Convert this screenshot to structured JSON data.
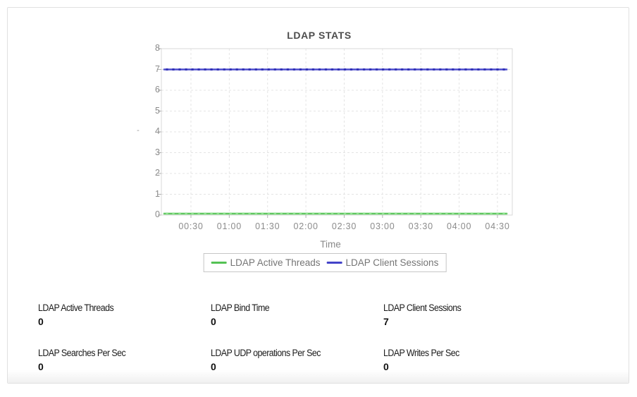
{
  "chart_data": {
    "type": "line",
    "title": "LDAP STATS",
    "xlabel": "Time",
    "ylabel": "-",
    "ylim": [
      0,
      8
    ],
    "yticks": [
      0,
      1,
      2,
      3,
      4,
      5,
      6,
      7,
      8
    ],
    "xticks": [
      "00:30",
      "01:00",
      "01:30",
      "02:00",
      "02:30",
      "03:00",
      "03:30",
      "04:00",
      "04:30"
    ],
    "grid": true,
    "legend_position": "bottom",
    "series": [
      {
        "name": "LDAP Active Threads",
        "constant_value": 0,
        "num_points": 54,
        "color": "#54c254",
        "marker_color": "#8de28d"
      },
      {
        "name": "LDAP Client Sessions",
        "constant_value": 7,
        "num_points": 54,
        "color": "#4343c9",
        "marker_color": "#2c2cb4"
      }
    ],
    "axis_tick_color": "#b0b0b0",
    "grid_color": "#e4e4e4",
    "plot_border_color": "#d9d9d9",
    "layout": {
      "tick_start_frac": 0.0843,
      "tick_step_frac": 0.10918
    }
  },
  "stats": {
    "items": [
      {
        "label": "LDAP Active Threads",
        "value": "0"
      },
      {
        "label": "LDAP Bind Time",
        "value": "0"
      },
      {
        "label": "LDAP Client Sessions",
        "value": "7"
      },
      {
        "label": "LDAP Searches Per Sec",
        "value": "0"
      },
      {
        "label": "LDAP UDP operations Per Sec",
        "value": "0"
      },
      {
        "label": "LDAP Writes Per Sec",
        "value": "0"
      }
    ]
  }
}
